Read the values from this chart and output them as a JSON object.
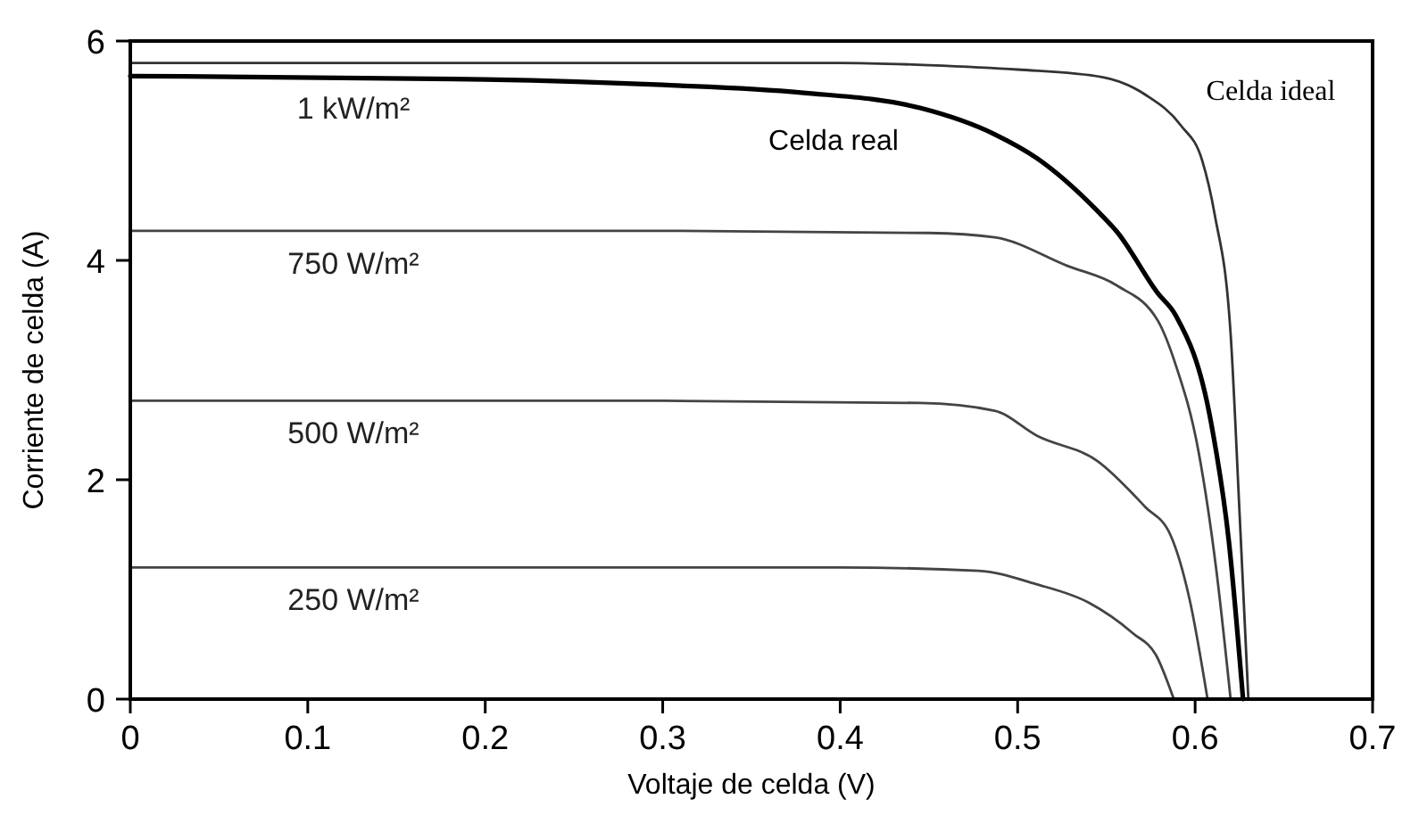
{
  "chart_data": {
    "type": "line",
    "xlabel": "Voltaje de celda (V)",
    "ylabel": "Corriente de celda (A)",
    "xlim": [
      0,
      0.7
    ],
    "xticks": [
      {
        "value": 0,
        "label": "0"
      },
      0.1,
      0.2,
      0.3,
      0.4,
      0.5,
      0.6,
      0.7
    ],
    "ylim": [
      0,
      6
    ],
    "yticks": [
      0,
      2,
      4,
      6
    ],
    "marker": "none",
    "line_style": "solid",
    "annotations": [
      "Celda real",
      "Celda ideal"
    ],
    "series": [
      {
        "color": "#333333",
        "x": [
          0,
          0.4,
          0.45,
          0.5,
          0.548,
          0.572,
          0.592,
          0.604,
          0.611,
          0.62,
          0.625,
          0.63
        ],
        "values": [
          5.8,
          5.8,
          5.78,
          5.74,
          5.67,
          5.51,
          5.23,
          4.91,
          4.42,
          3.33,
          1.71,
          0
        ]
      },
      {
        "name": "1 kW/m²",
        "color": "#000000",
        "x": [
          0,
          0.2,
          0.3,
          0.378,
          0.445,
          0.487,
          0.511,
          0.545,
          0.556,
          0.579,
          0.589,
          0.609,
          0.619,
          0.627
        ],
        "values": [
          5.68,
          5.65,
          5.6,
          5.53,
          5.39,
          5.15,
          4.93,
          4.45,
          4.26,
          3.7,
          3.5,
          2.52,
          1.44,
          0
        ]
      },
      {
        "name": "750 W/m²",
        "color": "#444444",
        "x": [
          0,
          0.3,
          0.45,
          0.487,
          0.528,
          0.556,
          0.579,
          0.589,
          0.602,
          0.612,
          0.62
        ],
        "values": [
          4.27,
          4.27,
          4.25,
          4.21,
          3.95,
          3.77,
          3.45,
          3.05,
          2.25,
          1.17,
          0
        ]
      },
      {
        "name": "500 W/m²",
        "color": "#444444",
        "x": [
          0,
          0.3,
          0.445,
          0.487,
          0.511,
          0.545,
          0.572,
          0.586,
          0.597,
          0.607
        ],
        "values": [
          2.72,
          2.72,
          2.7,
          2.63,
          2.4,
          2.17,
          1.75,
          1.5,
          0.9,
          0
        ]
      },
      {
        "name": "250 W/m²",
        "color": "#444444",
        "x": [
          0,
          0.4,
          0.478,
          0.51,
          0.54,
          0.565,
          0.578,
          0.588
        ],
        "values": [
          1.2,
          1.2,
          1.17,
          1.05,
          0.88,
          0.6,
          0.4,
          0
        ]
      }
    ]
  }
}
